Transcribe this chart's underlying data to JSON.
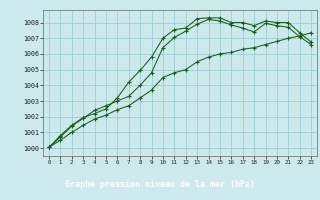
{
  "title": "Graphe pression niveau de la mer (hPa)",
  "bg_color": "#cce9ec",
  "label_bg": "#2e7d4f",
  "label_fg": "#ffffff",
  "grid_color": "#9dcdd4",
  "line_color": "#1a5c1a",
  "xlim": [
    -0.5,
    23.5
  ],
  "ylim": [
    999.5,
    1008.8
  ],
  "yticks": [
    1000,
    1001,
    1002,
    1003,
    1004,
    1005,
    1006,
    1007,
    1008
  ],
  "xticks": [
    0,
    1,
    2,
    3,
    4,
    5,
    6,
    7,
    8,
    9,
    10,
    11,
    12,
    13,
    14,
    15,
    16,
    17,
    18,
    19,
    20,
    21,
    22,
    23
  ],
  "series1_x": [
    0,
    1,
    2,
    3,
    4,
    5,
    6,
    7,
    8,
    9,
    10,
    11,
    12,
    13,
    14,
    15,
    16,
    17,
    18,
    19,
    20,
    21,
    22,
    23
  ],
  "series1_y": [
    1000.05,
    1000.8,
    1001.45,
    1001.95,
    1002.2,
    1002.5,
    1003.2,
    1004.2,
    1004.95,
    1005.8,
    1007.0,
    1007.55,
    1007.65,
    1008.25,
    1008.3,
    1008.3,
    1008.0,
    1008.0,
    1007.8,
    1008.1,
    1008.0,
    1008.0,
    1007.35,
    1006.75
  ],
  "series2_x": [
    0,
    1,
    2,
    3,
    4,
    5,
    6,
    7,
    8,
    9,
    10,
    11,
    12,
    13,
    14,
    15,
    16,
    17,
    18,
    19,
    20,
    21,
    22,
    23
  ],
  "series2_y": [
    1000.05,
    1000.7,
    1001.4,
    1001.9,
    1002.4,
    1002.7,
    1003.0,
    1003.3,
    1004.0,
    1004.8,
    1006.4,
    1007.05,
    1007.45,
    1007.9,
    1008.2,
    1008.1,
    1007.85,
    1007.65,
    1007.4,
    1007.95,
    1007.8,
    1007.7,
    1007.1,
    1006.6
  ],
  "series3_x": [
    0,
    1,
    2,
    3,
    4,
    5,
    6,
    7,
    8,
    9,
    10,
    11,
    12,
    13,
    14,
    15,
    16,
    17,
    18,
    19,
    20,
    21,
    22,
    23
  ],
  "series3_y": [
    1000.05,
    1000.5,
    1001.0,
    1001.45,
    1001.85,
    1002.1,
    1002.45,
    1002.7,
    1003.2,
    1003.7,
    1004.5,
    1004.8,
    1005.0,
    1005.5,
    1005.8,
    1006.0,
    1006.1,
    1006.3,
    1006.4,
    1006.6,
    1006.8,
    1007.0,
    1007.15,
    1007.35
  ]
}
